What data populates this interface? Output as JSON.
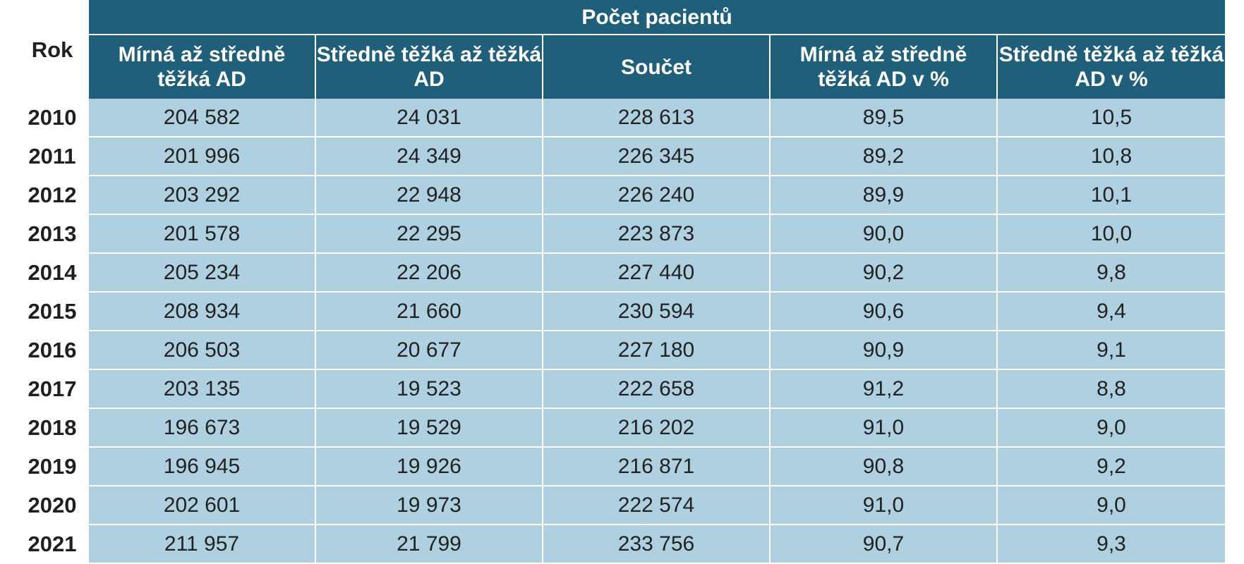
{
  "table": {
    "year_header": "Rok",
    "group_header": "Počet pacientů",
    "columns": [
      "Mírná až středně těžká AD",
      "Středně těžká až těžká  AD",
      "Součet",
      "Mírná až středně těžká AD v %",
      "Středně těžká až těžká AD v %"
    ],
    "rows": [
      {
        "year": "2010",
        "cells": [
          "204 582",
          "24 031",
          "228 613",
          "89,5",
          "10,5"
        ]
      },
      {
        "year": "2011",
        "cells": [
          "201 996",
          "24 349",
          "226 345",
          "89,2",
          "10,8"
        ]
      },
      {
        "year": "2012",
        "cells": [
          "203 292",
          "22 948",
          "226 240",
          "89,9",
          "10,1"
        ]
      },
      {
        "year": "2013",
        "cells": [
          "201 578",
          "22 295",
          "223 873",
          "90,0",
          "10,0"
        ]
      },
      {
        "year": "2014",
        "cells": [
          "205 234",
          "22 206",
          "227 440",
          "90,2",
          "9,8"
        ]
      },
      {
        "year": "2015",
        "cells": [
          "208 934",
          "21 660",
          "230 594",
          "90,6",
          "9,4"
        ]
      },
      {
        "year": "2016",
        "cells": [
          "206 503",
          "20 677",
          "227 180",
          "90,9",
          "9,1"
        ]
      },
      {
        "year": "2017",
        "cells": [
          "203 135",
          "19 523",
          "222 658",
          "91,2",
          "8,8"
        ]
      },
      {
        "year": "2018",
        "cells": [
          "196 673",
          "19 529",
          "216 202",
          "91,0",
          "9,0"
        ]
      },
      {
        "year": "2019",
        "cells": [
          "196 945",
          "19 926",
          "216 871",
          "90,8",
          "9,2"
        ]
      },
      {
        "year": "2020",
        "cells": [
          "202 601",
          "19 973",
          "222 574",
          "91,0",
          "9,0"
        ]
      },
      {
        "year": "2021",
        "cells": [
          "211 957",
          "21 799",
          "233 756",
          "90,7",
          "9,3"
        ]
      }
    ]
  },
  "colors": {
    "header_background": "#1f5f7a",
    "header_text": "#ffffff",
    "cell_background": "#aed0e0",
    "cell_text": "#222222"
  }
}
